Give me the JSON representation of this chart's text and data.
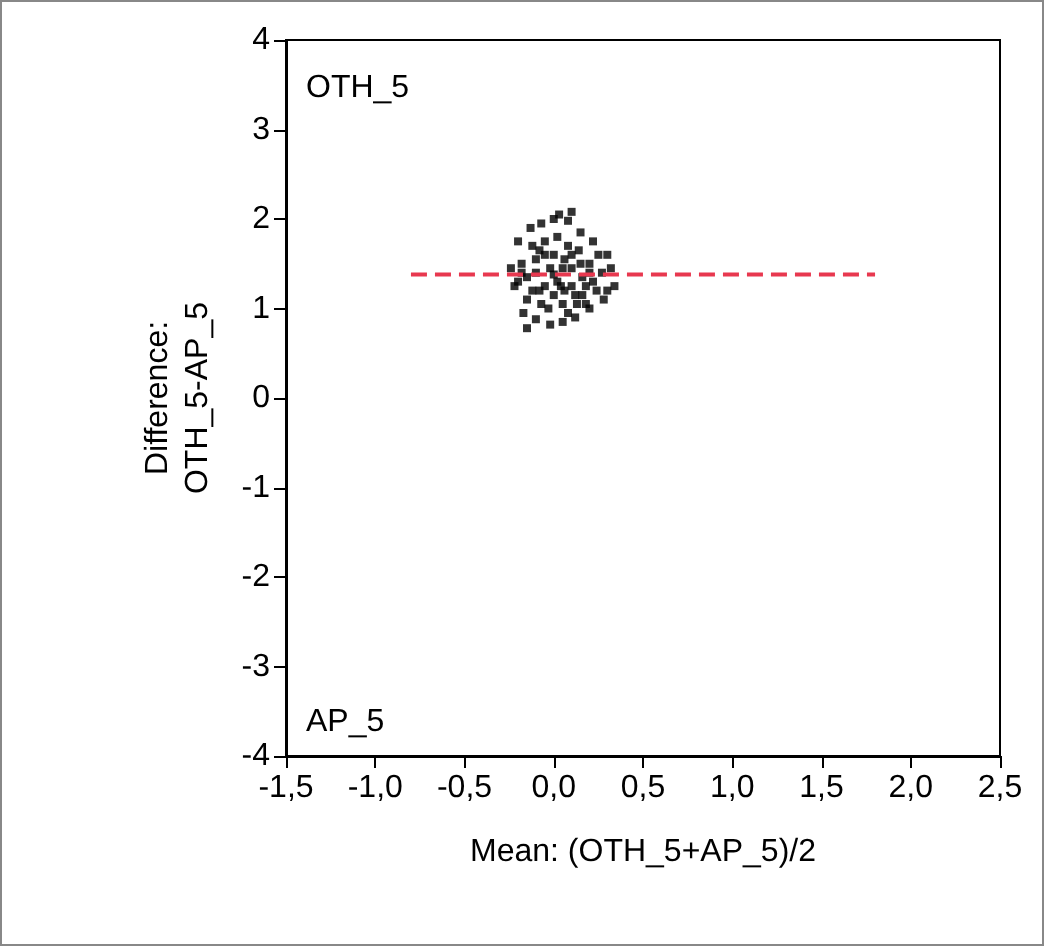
{
  "chart_data": {
    "type": "scatter",
    "xlabel": "Mean: (OTH_5+AP_5)/2",
    "ylabel": "Difference:\nOTH_5-AP_5",
    "annotations": [
      "OTH_5",
      "AP_5"
    ],
    "xlim": [
      -1.5,
      2.5
    ],
    "xticks": [
      {
        "value": -1.5,
        "label": "-1,5"
      },
      {
        "value": -1,
        "label": "-1,0"
      },
      {
        "value": -0.5,
        "label": "-0,5"
      },
      {
        "value": 0,
        "label": "0,0"
      },
      {
        "value": 0.5,
        "label": "0,5"
      },
      {
        "value": 1,
        "label": "1,0"
      },
      {
        "value": 1.5,
        "label": "1,5"
      },
      {
        "value": 2,
        "label": "2,0"
      },
      {
        "value": 2.5,
        "label": "2,5"
      }
    ],
    "ylim": [
      -4,
      4
    ],
    "yticks": [
      -4,
      -3,
      -2,
      -1,
      0,
      1,
      2,
      3,
      4
    ],
    "grid": false,
    "series": [
      {
        "color": "#000000",
        "marker": "square",
        "x": [
          -0.2,
          -0.18,
          -0.15,
          -0.12,
          -0.1,
          -0.08,
          -0.05,
          -0.03,
          0,
          0.02,
          0.04,
          0.06,
          0.08,
          0.1,
          0.12,
          0.14,
          0.16,
          0.18,
          0.2,
          0.22,
          0.25,
          0.27,
          0.3,
          0.32,
          -0.24,
          -0.22,
          -0.2,
          -0.17,
          -0.13,
          -0.1,
          -0.07,
          -0.02,
          0,
          0.03,
          0.05,
          0.08,
          0.12,
          0.15,
          0.2,
          0.22,
          0.28,
          0.3,
          0.34,
          -0.15,
          0.1,
          -0.15,
          -0.1,
          -0.05,
          0,
          0.05,
          0.1,
          0.15,
          -0.12,
          -0.02,
          0.08,
          0.18,
          0,
          0.05,
          -0.07,
          0.13,
          0.2,
          -0.18,
          0.24,
          0.02,
          -0.05,
          0.1,
          0.16,
          -0.08,
          0.06
        ],
        "values": [
          1.3,
          1.5,
          1.1,
          1.7,
          1.4,
          1.2,
          1.6,
          1.0,
          1.38,
          1.8,
          1.25,
          1.55,
          0.95,
          1.45,
          1.15,
          1.65,
          1.35,
          1.05,
          1.5,
          1.3,
          1.6,
          1.4,
          1.2,
          1.45,
          1.45,
          1.25,
          1.75,
          0.95,
          1.9,
          0.88,
          1.95,
          0.82,
          2.0,
          2.05,
          0.85,
          1.98,
          0.9,
          1.85,
          1.0,
          1.75,
          1.1,
          1.6,
          1.25,
          0.78,
          2.08,
          1.35,
          1.55,
          1.25,
          1.6,
          1.45,
          1.25,
          1.5,
          1.2,
          1.45,
          1.7,
          1.25,
          1.15,
          1.05,
          1.05,
          1.05,
          1.4,
          1.4,
          1.2,
          1.3,
          1.75,
          1.6,
          1.15,
          1.65,
          1.2
        ]
      },
      {
        "type": "line",
        "color": "#e8384f",
        "line_style": "dashed",
        "marker": "none",
        "x": [
          -0.8,
          1.8
        ],
        "values": [
          1.38,
          1.38
        ]
      }
    ]
  }
}
